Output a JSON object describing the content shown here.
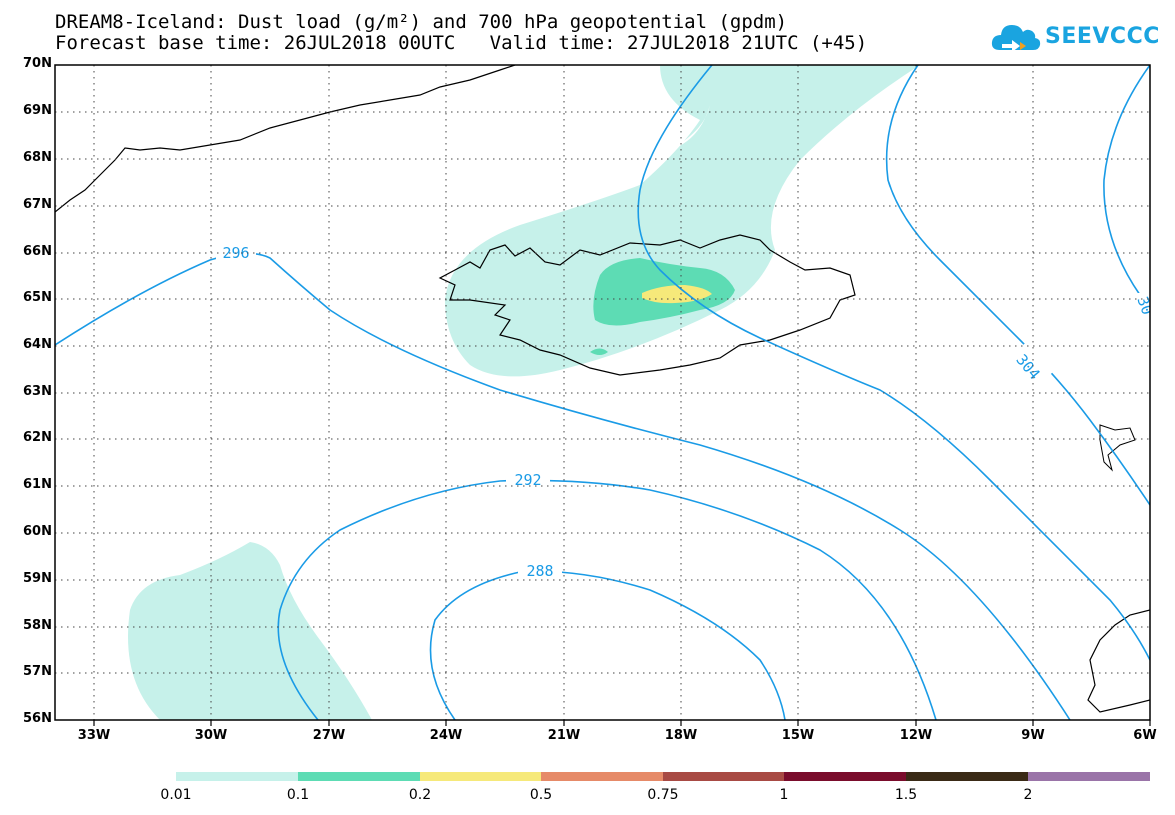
{
  "header": {
    "title_line1": "DREAM8-Iceland: Dust load (g/m²) and 700 hPa geopotential (gpdm)",
    "title_line2": "Forecast base time: 26JUL2018 00UTC   Valid time: 27JUL2018 21UTC (+45)"
  },
  "logo": {
    "text": "SEEVCCC",
    "icon": "cloud-logo-icon",
    "color": "#1aa4e0"
  },
  "axes": {
    "lat_labels": [
      "70N",
      "69N",
      "68N",
      "67N",
      "66N",
      "65N",
      "64N",
      "63N",
      "62N",
      "61N",
      "60N",
      "59N",
      "58N",
      "57N",
      "56N"
    ],
    "lon_labels": [
      "33W",
      "30W",
      "27W",
      "24W",
      "21W",
      "18W",
      "15W",
      "12W",
      "9W",
      "6W"
    ]
  },
  "contours": {
    "color": "#1a9be6",
    "labels": [
      {
        "id": "296",
        "text": "296"
      },
      {
        "id": "292",
        "text": "292"
      },
      {
        "id": "288",
        "text": "288"
      },
      {
        "id": "304",
        "text": "304"
      },
      {
        "id": "30x",
        "text": "30"
      }
    ]
  },
  "colorbar": {
    "segments": [
      {
        "color": "#c6f1ea"
      },
      {
        "color": "#5ddcb4"
      },
      {
        "color": "#f6e97a"
      },
      {
        "color": "#e68a68"
      },
      {
        "color": "#a84a44"
      },
      {
        "color": "#7a0c2c"
      },
      {
        "color": "#3a2a16"
      },
      {
        "color": "#9a74a8"
      }
    ],
    "labels": [
      "0.01",
      "0.1",
      "0.2",
      "0.5",
      "0.75",
      "1",
      "1.5",
      "2"
    ]
  }
}
